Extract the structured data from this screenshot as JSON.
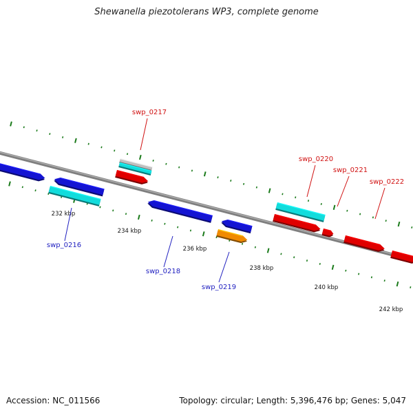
{
  "title": "Shewanella piezotolerans WP3, complete genome",
  "footer": {
    "accession": "Accession: NC_011566",
    "topology": "Topology: circular; Length: 5,396,476 bp; Genes: 5,047"
  },
  "colors": {
    "backbone": "#7f7f7f",
    "tick": "#1a7a1a",
    "blue": "#1414d2",
    "cyan": "#12dcdc",
    "red": "#e00000",
    "orange": "#f08a00",
    "gray": "#c0c0c0",
    "label_blue": "#2020c0",
    "label_red": "#d01010"
  },
  "scale_labels": [
    "232 kbp",
    "234 kbp",
    "236 kbp",
    "238 kbp",
    "240 kbp",
    "242 kbp"
  ],
  "gene_labels": [
    {
      "name": "swp_0216",
      "color": "blue"
    },
    {
      "name": "swp_0217",
      "color": "red"
    },
    {
      "name": "swp_0218",
      "color": "blue"
    },
    {
      "name": "swp_0219",
      "color": "blue"
    },
    {
      "name": "swp_0220",
      "color": "red"
    },
    {
      "name": "swp_0221",
      "color": "red"
    },
    {
      "name": "swp_0222",
      "color": "red"
    }
  ],
  "features": [
    {
      "id": "f1",
      "color": "blue",
      "dir": 1
    },
    {
      "id": "f2",
      "color": "blue",
      "dir": -1
    },
    {
      "id": "f3",
      "color": "cyan",
      "dir": 0
    },
    {
      "id": "f4",
      "color": "gray",
      "dir": 0
    },
    {
      "id": "f5",
      "color": "cyan",
      "dir": 0
    },
    {
      "id": "f6",
      "color": "red",
      "dir": 1
    },
    {
      "id": "f7",
      "color": "blue",
      "dir": -1
    },
    {
      "id": "f8",
      "color": "blue",
      "dir": -1
    },
    {
      "id": "f9",
      "color": "orange",
      "dir": 1
    },
    {
      "id": "f10",
      "color": "cyan",
      "dir": 0
    },
    {
      "id": "f11",
      "color": "red",
      "dir": 1
    },
    {
      "id": "f12",
      "color": "red",
      "dir": 1
    },
    {
      "id": "f13",
      "color": "red",
      "dir": 1
    },
    {
      "id": "f14",
      "color": "red",
      "dir": 1
    }
  ]
}
